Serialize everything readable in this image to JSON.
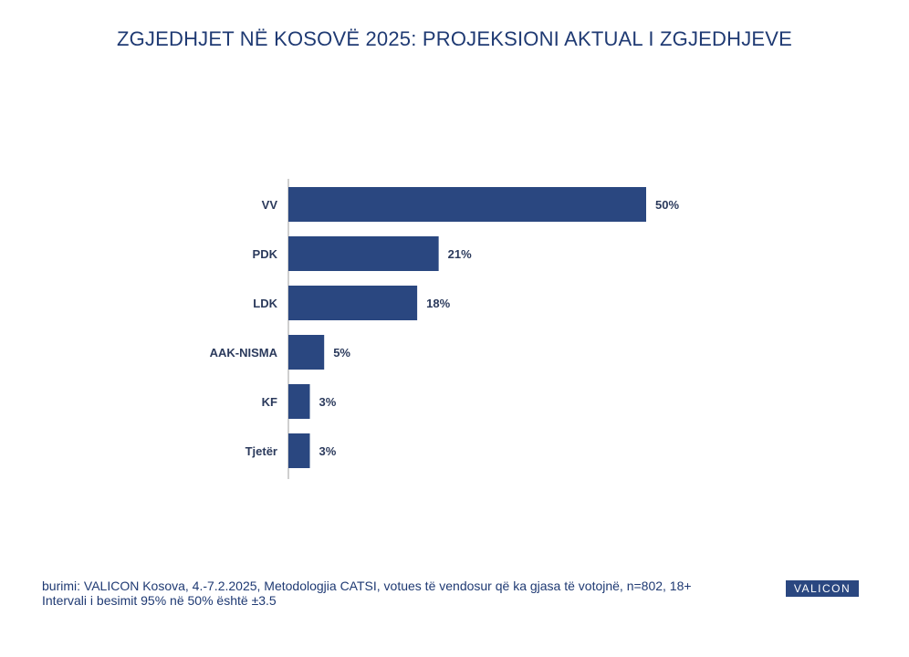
{
  "title": "ZGJEDHJET NË KOSOVË 2025: PROJEKSIONI AKTUAL I ZGJEDHJEVE",
  "footer": {
    "source": "burimi: VALICON Kosova, 4.-7.2.2025, Metodologjia CATSI, votues të vendosur që ka gjasa të votojnë, n=802, 18+",
    "interval": "Intervali i besimit 95% në 50% është ±3.5"
  },
  "brand": "VALICON",
  "colors": {
    "bar": "#2a4780",
    "title": "#1f3a73"
  },
  "chart_data": {
    "type": "bar",
    "orientation": "horizontal",
    "categories": [
      "VV",
      "PDK",
      "LDK",
      "AAK-NISMA",
      "KF",
      "Tjetër"
    ],
    "values": [
      50,
      21,
      18,
      5,
      3,
      3
    ],
    "data_labels": [
      "50%",
      "21%",
      "18%",
      "5%",
      "3%",
      "3%"
    ],
    "unit": "%",
    "xlim": [
      0,
      50
    ],
    "grid": false,
    "legend": "none"
  }
}
